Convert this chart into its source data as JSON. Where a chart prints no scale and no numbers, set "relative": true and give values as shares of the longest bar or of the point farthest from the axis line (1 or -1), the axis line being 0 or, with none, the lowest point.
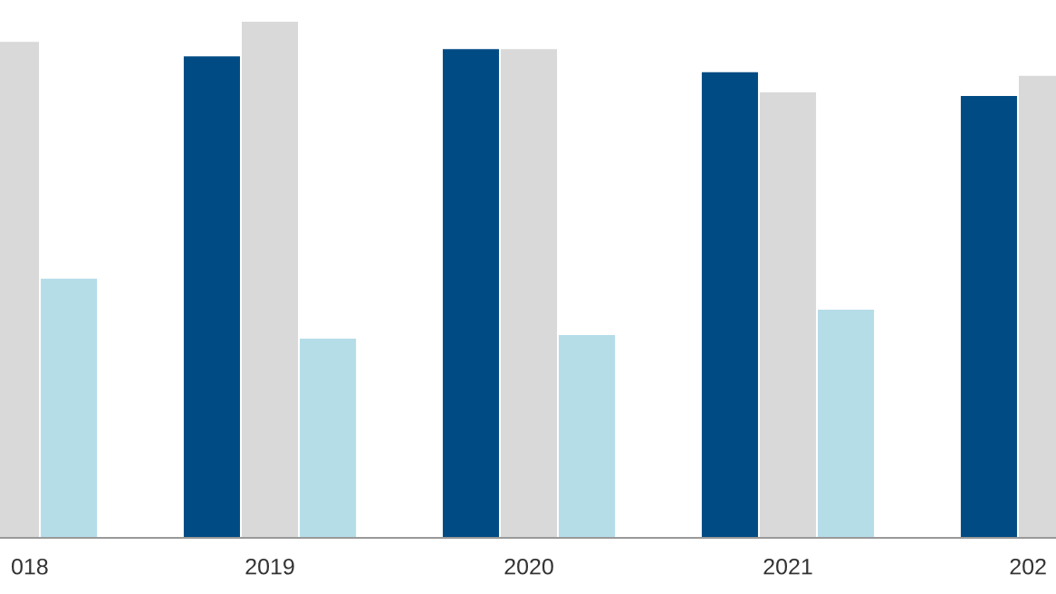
{
  "chart_data": {
    "type": "bar",
    "relative": true,
    "categories": [
      "018",
      "2019",
      "2020",
      "2021",
      "202"
    ],
    "series": [
      {
        "color": "#004b84",
        "values": [
          null,
          0.933,
          0.947,
          0.902,
          0.856
        ]
      },
      {
        "color": "#d9d9d9",
        "values": [
          0.961,
          1.0,
          0.947,
          0.863,
          0.895
        ]
      },
      {
        "color": "#b5dde8",
        "values": [
          0.502,
          0.386,
          0.393,
          0.442,
          null
        ]
      }
    ]
  }
}
